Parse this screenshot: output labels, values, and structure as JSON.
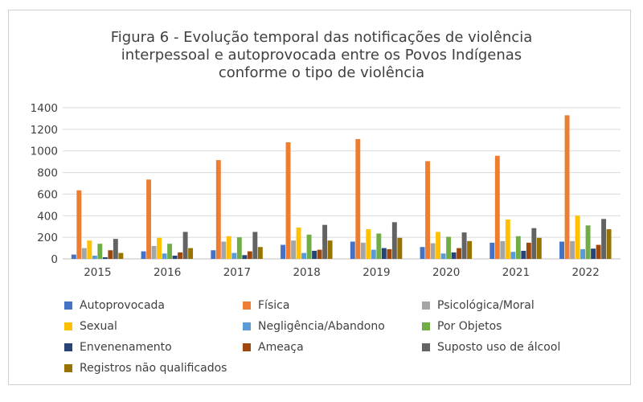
{
  "chart_data": {
    "type": "bar",
    "title": "Figura 6 - Evolução temporal das notificações de violência\ninterpessoal e autoprovocada entre os Povos Indígenas\nconforme o tipo de violência",
    "categories": [
      "2015",
      "2016",
      "2017",
      "2018",
      "2019",
      "2020",
      "2021",
      "2022"
    ],
    "ylim": [
      0,
      1400
    ],
    "yticks": [
      0,
      200,
      400,
      600,
      800,
      1000,
      1200,
      1400
    ],
    "grid": true,
    "legend_position": "bottom",
    "series": [
      {
        "name": "Autoprovocada",
        "color": "#4472C4",
        "values": [
          40,
          70,
          80,
          130,
          160,
          110,
          150,
          160
        ]
      },
      {
        "name": "Física",
        "color": "#ED7D31",
        "values": [
          635,
          735,
          915,
          1080,
          1110,
          905,
          955,
          1330
        ]
      },
      {
        "name": "Psicológica/Moral",
        "color": "#A5A5A5",
        "values": [
          100,
          120,
          160,
          170,
          150,
          145,
          165,
          165
        ]
      },
      {
        "name": "Sexual",
        "color": "#FFC000",
        "values": [
          170,
          195,
          210,
          290,
          275,
          250,
          365,
          400
        ]
      },
      {
        "name": "Negligência/Abandono",
        "color": "#5B9BD5",
        "values": [
          30,
          50,
          55,
          55,
          85,
          50,
          65,
          90
        ]
      },
      {
        "name": "Por Objetos",
        "color": "#70AD47",
        "values": [
          140,
          140,
          200,
          225,
          235,
          205,
          210,
          310
        ]
      },
      {
        "name": "Envenenamento",
        "color": "#264478",
        "values": [
          15,
          30,
          35,
          75,
          100,
          60,
          75,
          95
        ]
      },
      {
        "name": "Ameaça",
        "color": "#9E480E",
        "values": [
          80,
          60,
          70,
          85,
          90,
          100,
          150,
          130
        ]
      },
      {
        "name": "Suposto uso de álcool",
        "color": "#636363",
        "values": [
          185,
          250,
          250,
          315,
          340,
          245,
          285,
          370
        ]
      },
      {
        "name": "Registros não qualificados",
        "color": "#997300",
        "values": [
          55,
          100,
          110,
          170,
          195,
          165,
          195,
          275
        ]
      }
    ]
  }
}
